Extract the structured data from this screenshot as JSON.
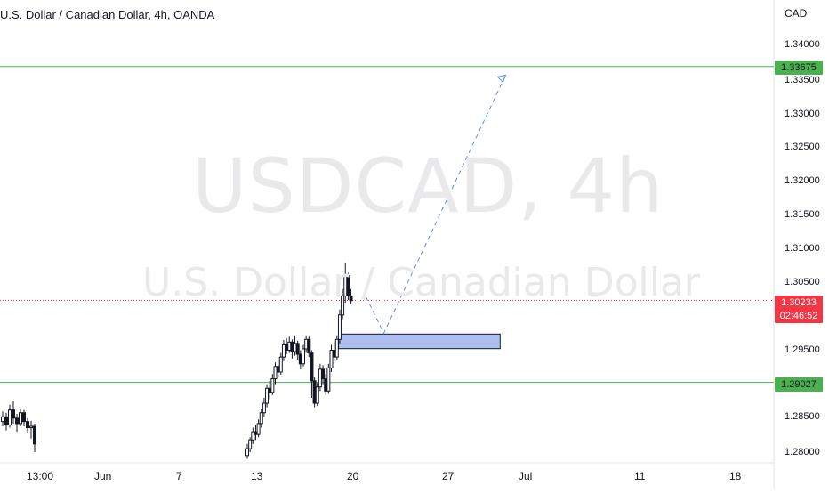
{
  "header": {
    "title": "U.S. Dollar / Canadian Dollar, 4h, OANDA"
  },
  "watermark": {
    "symbol": "USDCAD, 4h",
    "description": "U.S. Dollar / Canadian Dollar"
  },
  "price_axis": {
    "currency": "CAD",
    "ticks": [
      "1.34000",
      "1.33500",
      "1.33000",
      "1.32500",
      "1.32000",
      "1.31500",
      "1.31000",
      "1.30500",
      "1.29500",
      "1.28500",
      "1.28000"
    ]
  },
  "levels": {
    "resistance": "1.33675",
    "support": "1.29027",
    "current_price": "1.30233",
    "countdown": "02:46:52"
  },
  "time_axis": {
    "labels": [
      "13:00",
      "Jun",
      "7",
      "13",
      "20",
      "27",
      "Jul",
      "11",
      "18"
    ]
  },
  "colors": {
    "up": "#26a69a",
    "down": "#ef5350",
    "candle": "#131722",
    "level_line": "#4caf50",
    "current": "#f23645",
    "zone_fill": "#aebef0",
    "projection": "#5b8ff9"
  },
  "chart_data": {
    "type": "candlestick",
    "title": "U.S. Dollar / Canadian Dollar, 4h, OANDA",
    "ylim": [
      1.2785,
      1.3445
    ],
    "x_ticks": [
      "13:00",
      "Jun",
      "7",
      "13",
      "20",
      "27",
      "Jul",
      "11",
      "18"
    ],
    "y_ticks": [
      1.34,
      1.335,
      1.33,
      1.325,
      1.32,
      1.315,
      1.31,
      1.305,
      1.295,
      1.285,
      1.28
    ],
    "horizontal_levels": [
      1.33675,
      1.29027
    ],
    "current_price": 1.30233,
    "demand_zone": {
      "from_day": 19,
      "to_day": 30.8,
      "low": 1.2955,
      "high": 1.2966
    },
    "projection_path": [
      {
        "day": 21,
        "price": 1.3029
      },
      {
        "day": 22.3,
        "price": 1.2975
      },
      {
        "day": 31.2,
        "price": 1.3355
      }
    ],
    "candles_cluster_1": {
      "approx_range": [
        1.283,
        1.2875
      ],
      "note": "late May"
    },
    "candles_cluster_2": {
      "approx_range": [
        1.28,
        1.3078
      ],
      "note": "13 Jun – 20 Jun rally"
    }
  }
}
